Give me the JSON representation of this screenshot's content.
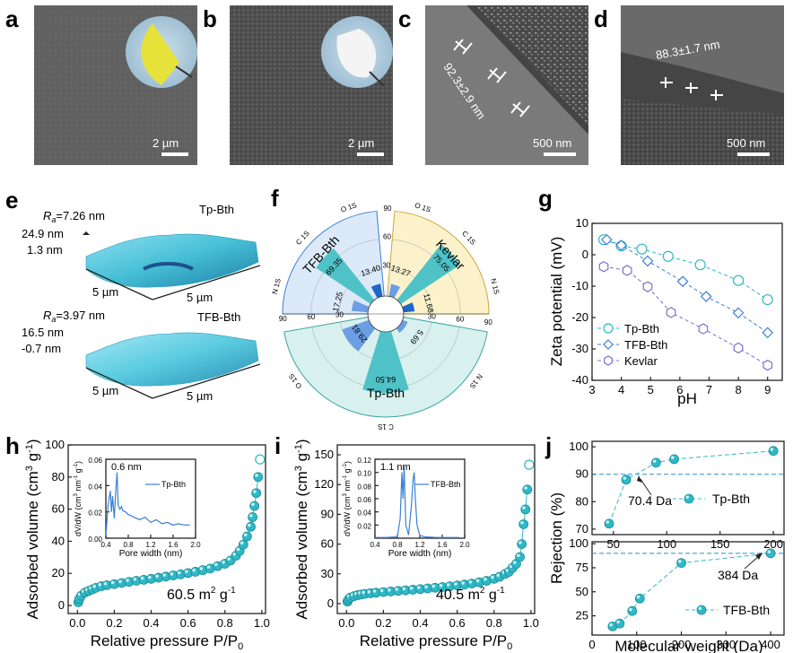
{
  "panel_labels": [
    "a",
    "b",
    "c",
    "d",
    "e",
    "f",
    "g",
    "h",
    "i",
    "j"
  ],
  "colors": {
    "teal": "#2fb8c6",
    "blue": "#3c7fd6",
    "purple": "#7a70d0",
    "sem_dark": "#3a3a3a",
    "sem_light": "#8a8a8a"
  },
  "sem": {
    "a": {
      "scale": "2 µm"
    },
    "b": {
      "scale": "2 µm"
    },
    "c": {
      "scale": "500 nm",
      "thickness": "92.3±2.9 nm"
    },
    "d": {
      "scale": "500 nm",
      "thickness": "88.3±1.7 nm"
    }
  },
  "afm": {
    "top": {
      "ra_label": "R",
      "ra_sub": "a",
      "ra_value": "=7.26 nm",
      "name": "Tp-Bth",
      "zmax": "24.9 nm",
      "zmin": "1.3 nm",
      "xy": "5 µm",
      "xy2": "5 µm"
    },
    "bottom": {
      "ra_label": "R",
      "ra_sub": "a",
      "ra_value": "=3.97 nm",
      "name": "TFB-Bth",
      "zmax": "16.5 nm",
      "zmin": "-0.7 nm",
      "xy": "5 µm",
      "xy2": "5 µm"
    }
  },
  "chart_data": [
    {
      "panel": "f",
      "type": "polar_bar",
      "title": "",
      "sectors": [
        {
          "name": "TFB-Bth",
          "ticks": [
            "30",
            "60",
            "90"
          ],
          "labels": [
            "N 1S",
            "C 1S",
            "O 1S"
          ],
          "values": [
            17.25,
            69.35,
            13.4
          ],
          "value_labels": [
            "17.25",
            "69.35",
            "13.40"
          ]
        },
        {
          "name": "Kevlar",
          "ticks": [
            "30",
            "60",
            "90"
          ],
          "labels": [
            "O 1S",
            "C 1S",
            "N 1S"
          ],
          "values": [
            13.27,
            75.05,
            11.68
          ],
          "value_labels": [
            "13.27",
            "75.05",
            "11.68"
          ]
        },
        {
          "name": "Tp-Bth",
          "ticks": [
            "30",
            "60",
            "90"
          ],
          "labels": [
            "N 1S",
            "C 1S",
            "O 1S"
          ],
          "values": [
            5.69,
            64.5,
            29.81
          ],
          "value_labels": [
            "5.69",
            "64.50",
            "29.81"
          ]
        }
      ],
      "max": 90
    },
    {
      "panel": "g",
      "type": "line",
      "xlabel": "pH",
      "ylabel": "Zeta potential (mV)",
      "xlim": [
        3,
        9.5
      ],
      "ylim": [
        -40,
        10
      ],
      "xticks": [
        "3",
        "4",
        "5",
        "6",
        "7",
        "8",
        "9"
      ],
      "yticks": [
        "10",
        "0",
        "-10",
        "-20",
        "-30",
        "-40"
      ],
      "series": [
        {
          "name": "Tp-Bth",
          "marker": "circle",
          "x": [
            3.4,
            4.0,
            4.7,
            5.6,
            6.7,
            8.0,
            9.0
          ],
          "y": [
            4.8,
            2.8,
            1.8,
            -0.5,
            -3.2,
            -8.2,
            -14.3
          ]
        },
        {
          "name": "TFB-Bth",
          "marker": "diamond",
          "x": [
            3.5,
            4.0,
            4.9,
            6.1,
            6.9,
            8.0,
            9.0
          ],
          "y": [
            4.8,
            3.0,
            -2.0,
            -8.5,
            -13.3,
            -18.5,
            -24.8
          ]
        },
        {
          "name": "Kevlar",
          "marker": "hexagon",
          "x": [
            3.4,
            4.2,
            4.9,
            5.7,
            6.8,
            8.0,
            9.0
          ],
          "y": [
            -3.8,
            -5.0,
            -10.2,
            -18.4,
            -23.6,
            -29.7,
            -35.2
          ]
        }
      ]
    },
    {
      "panel": "h",
      "type": "scatter",
      "xlabel_main": "Relative pressure P/P",
      "xlabel_sub": "0",
      "ylabel_main": "Adsorbed volume (cm",
      "ylabel_sup1": "3",
      "ylabel_mid": " g",
      "ylabel_sup2": "-1",
      "ylabel_end": ")",
      "xlim": [
        -0.05,
        1.02
      ],
      "ylim": [
        -5,
        100
      ],
      "xticks": [
        "0.0",
        "0.2",
        "0.4",
        "0.6",
        "0.8",
        "1.0"
      ],
      "yticks": [
        "0",
        "20",
        "40",
        "60",
        "80",
        "100"
      ],
      "annotation_main": "60.5 m",
      "annotation_sup1": "2",
      "annotation_mid": " g",
      "annotation_sup2": "-1",
      "x": [
        0.005,
        0.01,
        0.02,
        0.04,
        0.06,
        0.08,
        0.1,
        0.13,
        0.16,
        0.2,
        0.24,
        0.28,
        0.32,
        0.36,
        0.4,
        0.44,
        0.48,
        0.52,
        0.56,
        0.6,
        0.64,
        0.68,
        0.72,
        0.76,
        0.8,
        0.83,
        0.86,
        0.88,
        0.9,
        0.92,
        0.94,
        0.95,
        0.96,
        0.97,
        0.98
      ],
      "y": [
        2,
        4,
        6,
        8,
        9,
        10,
        11,
        12,
        12.6,
        13.3,
        14,
        14.7,
        15.4,
        16,
        16.6,
        17.3,
        18,
        18.7,
        19.4,
        20.2,
        21,
        22,
        23,
        24.5,
        26,
        28,
        31,
        34,
        38,
        43,
        49,
        55,
        62,
        70,
        80
      ],
      "open_point": {
        "x": 0.99,
        "y": 91
      },
      "inset": {
        "xlabel": "Pore width (nm)",
        "ylabel_main": "dV/dW (cm",
        "ylabel_sup1": "3",
        "ylabel_mid": " nm",
        "ylabel_sup2": "-1",
        "ylabel_mid2": " g",
        "ylabel_sup3": "-1",
        "ylabel_end": ")",
        "legend": "Tp-Bth",
        "peak_label": "0.6 nm",
        "xlim": [
          0.4,
          2.0
        ],
        "ylim": [
          0,
          0.06
        ],
        "xticks": [
          "0.4",
          "0.8",
          "1.2",
          "1.6",
          "2.0"
        ],
        "yticks": [
          "0.00",
          "0.02",
          "0.04",
          "0.06"
        ],
        "x": [
          0.4,
          0.44,
          0.48,
          0.5,
          0.52,
          0.55,
          0.58,
          0.6,
          0.62,
          0.65,
          0.68,
          0.7,
          0.75,
          0.8,
          0.85,
          0.9,
          1.0,
          1.1,
          1.2,
          1.3,
          1.4,
          1.5,
          1.6,
          1.7,
          1.8,
          1.9
        ],
        "y": [
          0.002,
          0.025,
          0.036,
          0.02,
          0.032,
          0.015,
          0.038,
          0.05,
          0.025,
          0.022,
          0.024,
          0.021,
          0.02,
          0.018,
          0.017,
          0.016,
          0.014,
          0.016,
          0.012,
          0.014,
          0.011,
          0.012,
          0.01,
          0.011,
          0.01,
          0.01
        ]
      }
    },
    {
      "panel": "i",
      "type": "scatter",
      "xlabel_main": "Relative pressure P/P",
      "xlabel_sub": "0",
      "ylabel_main": "Adsorbed volume (cm",
      "ylabel_sup1": "3",
      "ylabel_mid": " g",
      "ylabel_sup2": "-1",
      "ylabel_end": ")",
      "xlim": [
        -0.05,
        1.02
      ],
      "ylim": [
        -10,
        160
      ],
      "xticks": [
        "0.0",
        "0.2",
        "0.4",
        "0.6",
        "0.8",
        "1.0"
      ],
      "yticks": [
        "0",
        "30",
        "60",
        "90",
        "120",
        "150"
      ],
      "annotation_main": "40.5 m",
      "annotation_sup1": "2",
      "annotation_mid": " g",
      "annotation_sup2": "-1",
      "x": [
        0.005,
        0.01,
        0.02,
        0.04,
        0.06,
        0.08,
        0.1,
        0.13,
        0.16,
        0.2,
        0.24,
        0.28,
        0.32,
        0.36,
        0.4,
        0.44,
        0.48,
        0.52,
        0.56,
        0.6,
        0.64,
        0.68,
        0.72,
        0.76,
        0.8,
        0.83,
        0.86,
        0.88,
        0.9,
        0.92,
        0.94,
        0.95,
        0.96,
        0.97,
        0.98
      ],
      "y": [
        2,
        4,
        6,
        7.5,
        8.5,
        9.2,
        9.8,
        10.4,
        11,
        11.6,
        12.2,
        12.8,
        13.4,
        14,
        14.6,
        15.3,
        16,
        16.7,
        17.5,
        18.3,
        19.2,
        20.2,
        21.5,
        23,
        25,
        27,
        30,
        32,
        36,
        40,
        47,
        60,
        80,
        95,
        115
      ],
      "open_point": {
        "x": 0.99,
        "y": 140
      },
      "inset": {
        "xlabel": "Pore width (nm)",
        "ylabel_main": "dV/dW (cm",
        "ylabel_sup1": "3",
        "ylabel_mid": " nm",
        "ylabel_sup2": "-1",
        "ylabel_mid2": " g",
        "ylabel_sup3": "-1",
        "ylabel_end": ")",
        "legend": "TFB-Bth",
        "peak_label": "1.1 nm",
        "xlim": [
          0.4,
          2.0
        ],
        "ylim": [
          0,
          0.12
        ],
        "xticks": [
          "0.4",
          "0.8",
          "1.2",
          "1.6",
          "2.0"
        ],
        "yticks": [
          "0.02",
          "0.04",
          "0.06",
          "0.08",
          "0.10",
          "0.12"
        ],
        "x": [
          0.4,
          0.6,
          0.8,
          0.85,
          0.88,
          0.9,
          0.92,
          0.95,
          1.0,
          1.05,
          1.08,
          1.1,
          1.12,
          1.15,
          1.2,
          1.3,
          1.5,
          1.7,
          1.9
        ],
        "y": [
          0.001,
          0.001,
          0.002,
          0.03,
          0.1,
          0.06,
          0.11,
          0.02,
          0.005,
          0.05,
          0.09,
          0.1,
          0.06,
          0.02,
          0.004,
          0.002,
          0.001,
          0.001,
          0.001
        ]
      }
    },
    {
      "panel": "j",
      "type": "scatter",
      "xlabel": "Molecular weight (Da)",
      "ylabel": "Rejection (%)",
      "top": {
        "name": "Tp-Bth",
        "xlim": [
          30,
          210
        ],
        "ylim": [
          68,
          102
        ],
        "xticks": [
          "50",
          "100",
          "150",
          "200"
        ],
        "yticks": [
          "70",
          "80",
          "90",
          "100"
        ],
        "x": [
          46,
          62,
          90,
          107,
          200
        ],
        "y": [
          72,
          88,
          94.2,
          95.5,
          98.5
        ],
        "cutoff_y": 90,
        "cutoff_label": "70.4 Da"
      },
      "bottom": {
        "name": "TFB-Bth",
        "xlim": [
          0,
          430
        ],
        "ylim": [
          5,
          102
        ],
        "xticks": [
          "0",
          "100",
          "200",
          "300",
          "400"
        ],
        "yticks": [
          "25",
          "50",
          "75",
          "100"
        ],
        "x": [
          46,
          62,
          90,
          107,
          200,
          400
        ],
        "y": [
          14,
          17,
          30,
          43,
          80,
          90
        ],
        "cutoff_y": 90,
        "cutoff_label": "384 Da"
      }
    }
  ]
}
